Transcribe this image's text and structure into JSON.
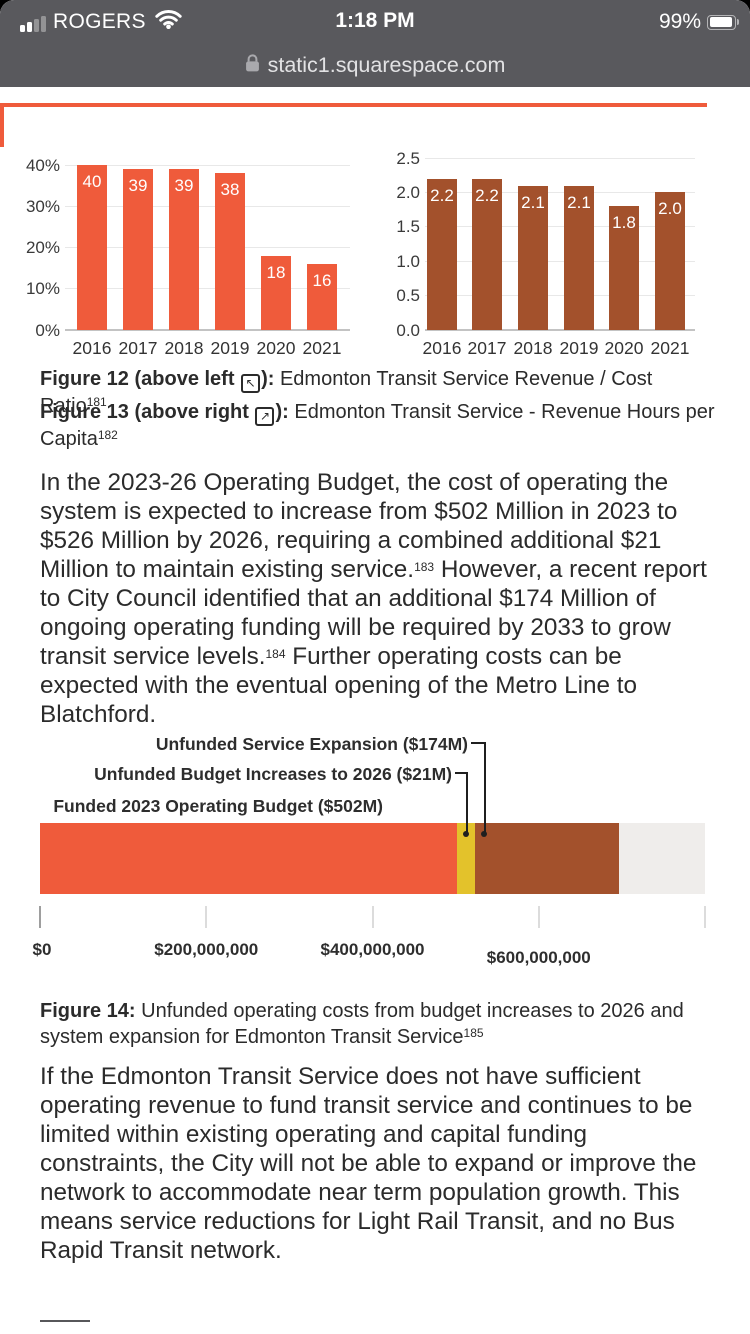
{
  "status_bar": {
    "carrier": "ROGERS",
    "time": "1:18 PM",
    "battery_percent": "99%",
    "url": "static1.squarespace.com"
  },
  "colors": {
    "accent_orange": "#ef5b3b",
    "brown": "#a3512c",
    "yellow": "#e3c22b",
    "track_gray": "#efedeb",
    "statusbar_gray": "#59595d"
  },
  "chart_data": [
    {
      "type": "bar",
      "title": "Edmonton Transit Service Revenue / Cost Ratio",
      "categories": [
        "2016",
        "2017",
        "2018",
        "2019",
        "2020",
        "2021"
      ],
      "values": [
        40,
        39,
        39,
        38,
        18,
        16
      ],
      "value_labels": [
        "40",
        "39",
        "39",
        "38",
        "18",
        "16"
      ],
      "y_ticks": [
        "40%",
        "30%",
        "20%",
        "10%",
        "0%"
      ],
      "y_tick_values": [
        40,
        30,
        20,
        10,
        0
      ],
      "ylim": [
        0,
        40
      ],
      "bar_color": "#ef5b3b",
      "grid": true,
      "legend": "none"
    },
    {
      "type": "bar",
      "title": "Edmonton Transit Service - Revenue Hours per Capita",
      "categories": [
        "2016",
        "2017",
        "2018",
        "2019",
        "2020",
        "2021"
      ],
      "values": [
        2.2,
        2.2,
        2.1,
        2.1,
        1.8,
        2.0
      ],
      "value_labels": [
        "2.2",
        "2.2",
        "2.1",
        "2.1",
        "1.8",
        "2.0"
      ],
      "y_ticks": [
        "2.5",
        "2.0",
        "1.5",
        "1.0",
        "0.5",
        "0.0"
      ],
      "y_tick_values": [
        2.5,
        2.0,
        1.5,
        1.0,
        0.5,
        0
      ],
      "ylim": [
        0,
        2.5
      ],
      "bar_color": "#a3512c",
      "grid": true,
      "legend": "none"
    },
    {
      "type": "stacked_bar_horizontal",
      "title": "Unfunded operating costs from budget increases to 2026 and system expansion",
      "segments": [
        {
          "label": "Funded 2023 Operating Budget ($502M)",
          "value": 502000000,
          "color": "#ef5b3b"
        },
        {
          "label": "Unfunded Budget Increases to 2026 ($21M)",
          "value": 21000000,
          "color": "#e3c22b"
        },
        {
          "label": "Unfunded Service Expansion ($174M)",
          "value": 174000000,
          "color": "#a3512c"
        }
      ],
      "xlim": [
        0,
        800000000
      ],
      "x_ticks": [
        "$0",
        "$200,000,000",
        "$400,000,000",
        "$600,000,000"
      ],
      "x_tick_values": [
        0,
        200000000,
        400000000,
        600000000
      ],
      "track_color": "#efedeb"
    }
  ],
  "captions": {
    "fig12": {
      "bold": "Figure 12 (above left",
      "icon": "arrow-up-left",
      "bold2": "):",
      "text": " Edmonton Transit Service Revenue / Cost Ratio",
      "footnote": "181"
    },
    "fig13": {
      "bold": "Figure 13 (above right",
      "icon": "arrow-up-right",
      "bold2": "):",
      "text": " Edmonton Transit Service - Revenue Hours per Capita",
      "footnote": "182"
    },
    "fig14": {
      "bold": "Figure 14:",
      "text": " Unfunded operating costs from budget increases to 2026 and system expansion for Edmonton Transit Service",
      "footnote": "185"
    }
  },
  "paragraphs": {
    "p1": {
      "segments": [
        {
          "text": "In the 2023-26 Operating Budget, the cost of operating the system is expected to increase from $502 Million in 2023 to $526 Million by 2026, requiring a combined additional $21 Million to maintain existing service."
        },
        {
          "sup": "183"
        },
        {
          "text": " However, a recent report to City Council identified that an additional $174 Million of ongoing operating funding will be required by 2033 to grow transit service levels."
        },
        {
          "sup": "184"
        },
        {
          "text": " Further operating costs can be expected with the eventual opening of the Metro Line to Blatchford."
        }
      ]
    },
    "p2": {
      "segments": [
        {
          "text": "If the Edmonton Transit Service does not have sufficient operating revenue to fund transit service and continues to be limited within existing operating and capital funding constraints, the City will not be able to expand or improve the network to accommodate near term population growth. This means service reductions for Light Rail Transit, and no Bus Rapid Transit network."
        }
      ]
    }
  }
}
